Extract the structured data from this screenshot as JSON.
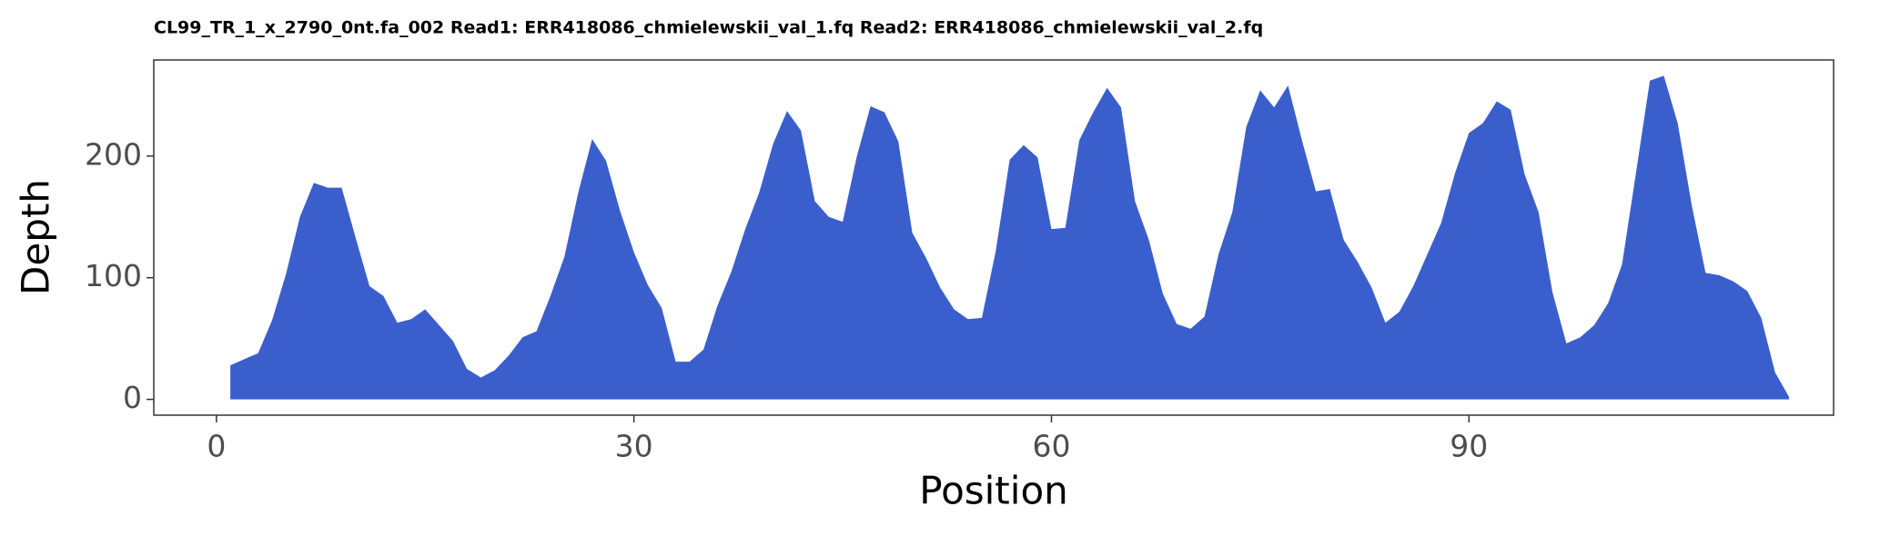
{
  "chart_data": {
    "type": "area",
    "title": "CL99_TR_1_x_2790_0nt.fa_002 Read1: ERR418086_chmielewskii_val_1.fq Read2: ERR418086_chmielewskii_val_2.fq",
    "x_label": "Position",
    "y_label": "Depth",
    "color": "#3a5fcd",
    "x": [
      1,
      2,
      3,
      4,
      5,
      6,
      7,
      8,
      9,
      10,
      11,
      12,
      13,
      14,
      15,
      16,
      17,
      18,
      19,
      20,
      21,
      22,
      23,
      24,
      25,
      26,
      27,
      28,
      29,
      30,
      31,
      32,
      33,
      34,
      35,
      36,
      37,
      38,
      39,
      40,
      41,
      42,
      43,
      44,
      45,
      46,
      47,
      48,
      49,
      50,
      51,
      52,
      53,
      54,
      55,
      56,
      57,
      58,
      59,
      60,
      61,
      62,
      63,
      64,
      65,
      66,
      67,
      68,
      69,
      70,
      71,
      72,
      73,
      74,
      75,
      76,
      77,
      78,
      79,
      80,
      81,
      82,
      83,
      84,
      85,
      86,
      87,
      88,
      89,
      90,
      91,
      92,
      93,
      94,
      95,
      96,
      97,
      98,
      99,
      100,
      101,
      102,
      103,
      104,
      105,
      106,
      107,
      108,
      109,
      110,
      111,
      112,
      113
    ],
    "values": [
      28,
      33,
      38,
      65,
      103,
      150,
      178,
      174,
      174,
      133,
      93,
      85,
      63,
      66,
      74,
      61,
      48,
      25,
      18,
      24,
      36,
      51,
      56,
      85,
      117,
      170,
      214,
      196,
      155,
      121,
      94,
      75,
      31,
      31,
      41,
      77,
      105,
      140,
      170,
      210,
      237,
      221,
      163,
      150,
      146,
      199,
      241,
      236,
      212,
      137,
      116,
      92,
      74,
      66,
      67,
      122,
      197,
      209,
      199,
      140,
      141,
      213,
      236,
      256,
      240,
      163,
      131,
      87,
      62,
      58,
      68,
      119,
      154,
      224,
      254,
      240,
      258,
      213,
      171,
      173,
      131,
      113,
      92,
      63,
      72,
      93,
      119,
      145,
      186,
      219,
      227,
      245,
      238,
      185,
      154,
      88,
      46,
      51,
      61,
      79,
      111,
      186,
      262,
      266,
      227,
      160,
      104,
      102,
      97,
      89,
      67,
      22,
      2
    ],
    "xlim": [
      -4.5,
      116.2
    ],
    "ylim": [
      -13,
      279
    ],
    "xticks": [
      0,
      30,
      60,
      90
    ],
    "yticks": [
      0,
      100,
      200
    ]
  }
}
